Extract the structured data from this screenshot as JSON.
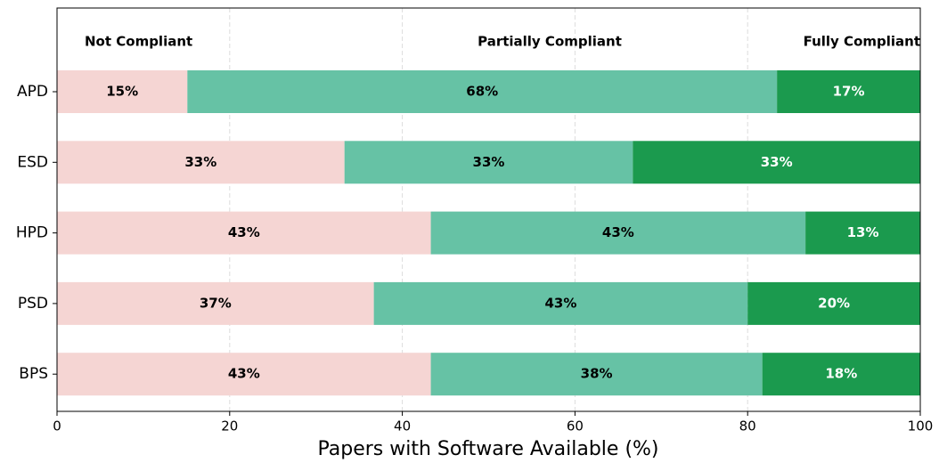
{
  "chart_data": {
    "type": "stacked_barh",
    "xlabel": "Papers with Software Available (%)",
    "categories": [
      "APD",
      "ESD",
      "HPD",
      "PSD",
      "BPS"
    ],
    "series": [
      {
        "name": "Not Compliant",
        "color": "#f5d5d3",
        "label_color": "#000000",
        "values": [
          15.1,
          33.3,
          43.3,
          36.7,
          43.3
        ],
        "value_labels": [
          "15%",
          "33%",
          "43%",
          "37%",
          "43%"
        ]
      },
      {
        "name": "Partially Compliant",
        "color": "#66c2a5",
        "label_color": "#000000",
        "values": [
          68.3,
          33.4,
          43.4,
          43.3,
          38.4
        ],
        "value_labels": [
          "68%",
          "33%",
          "43%",
          "43%",
          "38%"
        ]
      },
      {
        "name": "Fully Compliant",
        "color": "#1b9a4e",
        "label_color": "#ffffff",
        "values": [
          16.6,
          33.3,
          13.3,
          20,
          18.3
        ],
        "value_labels": [
          "17%",
          "33%",
          "13%",
          "20%",
          "18%"
        ]
      }
    ],
    "xlim": [
      0,
      100
    ],
    "xticks": [
      0,
      20,
      40,
      60,
      80,
      100
    ],
    "grid": true
  }
}
